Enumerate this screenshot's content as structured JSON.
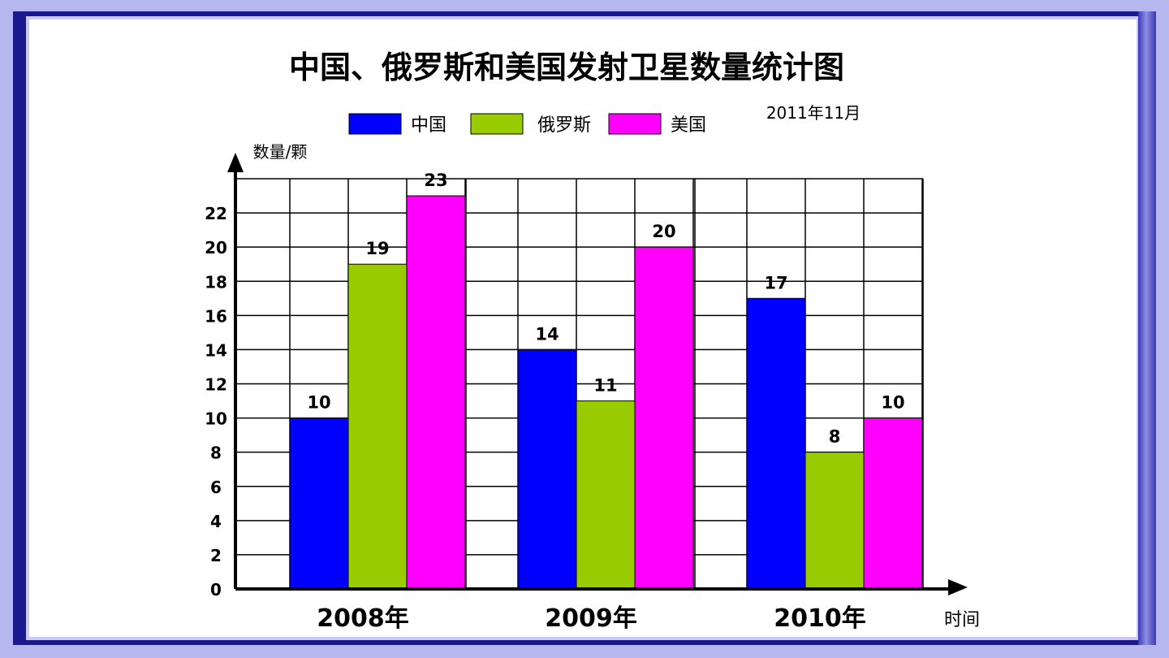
{
  "chart_data": {
    "type": "bar",
    "title": "中国、俄罗斯和美国发射卫星数量统计图",
    "subtitle": "2011年11月",
    "ylabel": "数量/颗",
    "xlabel": "时间",
    "categories": [
      "2008年",
      "2009年",
      "2010年"
    ],
    "series": [
      {
        "name": "中国",
        "color": "#0000ff",
        "values": [
          10,
          14,
          17
        ]
      },
      {
        "name": "俄罗斯",
        "color": "#99cc00",
        "values": [
          19,
          11,
          8
        ]
      },
      {
        "name": "美国",
        "color": "#ff00ff",
        "values": [
          23,
          20,
          10
        ]
      }
    ],
    "yticks": [
      0,
      2,
      4,
      6,
      8,
      10,
      12,
      14,
      16,
      18,
      20,
      22
    ],
    "ylim": [
      0,
      24
    ],
    "grid": true,
    "legend_position": "top"
  }
}
